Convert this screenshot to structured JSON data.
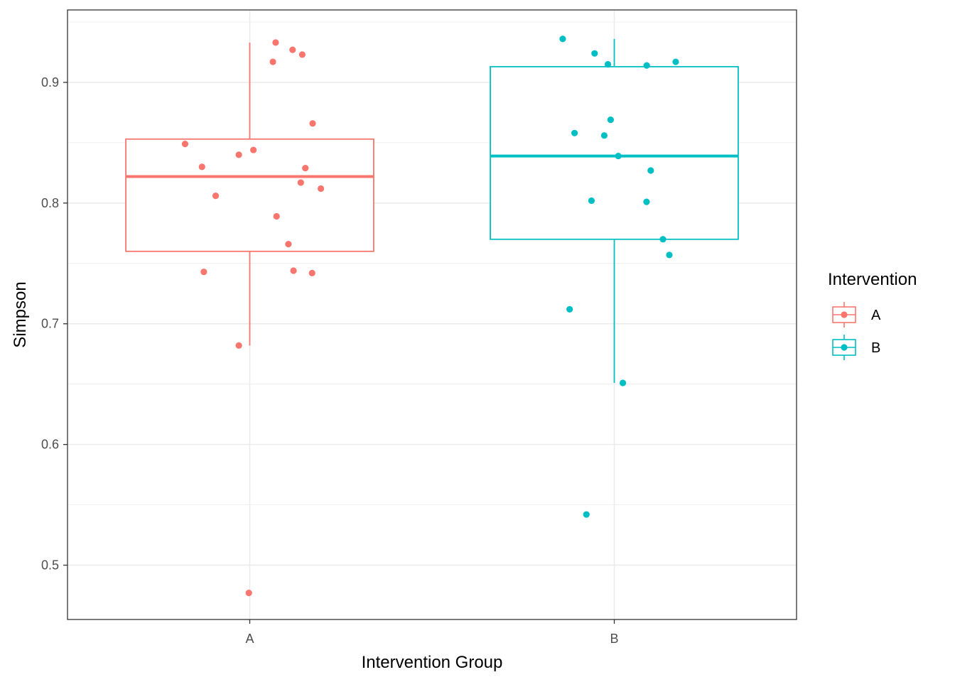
{
  "chart_data": {
    "type": "boxplot",
    "title": "",
    "xlabel": "Intervention Group",
    "ylabel": "Simpson",
    "categories": [
      "A",
      "B"
    ],
    "ylim": [
      0.455,
      0.96
    ],
    "yticks": [
      0.5,
      0.6,
      0.7,
      0.8,
      0.9
    ],
    "ytick_labels": [
      "0.5",
      "0.6",
      "0.7",
      "0.8",
      "0.9"
    ],
    "ygrid_minor": [
      0.55,
      0.65,
      0.75,
      0.85,
      0.95
    ],
    "grid": true,
    "legend": {
      "title": "Intervention",
      "placement": "right",
      "entries": [
        "A",
        "B"
      ]
    },
    "series": [
      {
        "name": "A",
        "color": "#F8766D",
        "box": {
          "lower_whisker": 0.682,
          "q1": 0.76,
          "median": 0.822,
          "q3": 0.853,
          "upper_whisker": 0.933
        },
        "points": [
          {
            "jitter": -0.355,
            "value": 0.849
          },
          {
            "jitter": -0.262,
            "value": 0.83
          },
          {
            "jitter": -0.187,
            "value": 0.806
          },
          {
            "jitter": -0.252,
            "value": 0.743
          },
          {
            "jitter": -0.06,
            "value": 0.84
          },
          {
            "jitter": 0.02,
            "value": 0.844
          },
          {
            "jitter": -0.06,
            "value": 0.682
          },
          {
            "jitter": -0.005,
            "value": 0.477
          },
          {
            "jitter": 0.127,
            "value": 0.917
          },
          {
            "jitter": 0.142,
            "value": 0.933
          },
          {
            "jitter": 0.235,
            "value": 0.927
          },
          {
            "jitter": 0.288,
            "value": 0.923
          },
          {
            "jitter": 0.345,
            "value": 0.866
          },
          {
            "jitter": 0.305,
            "value": 0.829
          },
          {
            "jitter": 0.28,
            "value": 0.817
          },
          {
            "jitter": 0.39,
            "value": 0.812
          },
          {
            "jitter": 0.147,
            "value": 0.789
          },
          {
            "jitter": 0.212,
            "value": 0.766
          },
          {
            "jitter": 0.24,
            "value": 0.744
          },
          {
            "jitter": 0.342,
            "value": 0.742
          }
        ]
      },
      {
        "name": "B",
        "color": "#00BFC4",
        "box": {
          "lower_whisker": 0.651,
          "q1": 0.77,
          "median": 0.839,
          "q3": 0.913,
          "upper_whisker": 0.936
        },
        "points": [
          {
            "jitter": -0.283,
            "value": 0.936
          },
          {
            "jitter": -0.108,
            "value": 0.924
          },
          {
            "jitter": -0.035,
            "value": 0.915
          },
          {
            "jitter": 0.178,
            "value": 0.914
          },
          {
            "jitter": 0.337,
            "value": 0.917
          },
          {
            "jitter": -0.218,
            "value": 0.858
          },
          {
            "jitter": -0.02,
            "value": 0.869
          },
          {
            "jitter": -0.055,
            "value": 0.856
          },
          {
            "jitter": 0.022,
            "value": 0.839
          },
          {
            "jitter": 0.2,
            "value": 0.827
          },
          {
            "jitter": -0.125,
            "value": 0.802
          },
          {
            "jitter": 0.177,
            "value": 0.801
          },
          {
            "jitter": 0.267,
            "value": 0.77
          },
          {
            "jitter": 0.302,
            "value": 0.757
          },
          {
            "jitter": -0.245,
            "value": 0.712
          },
          {
            "jitter": 0.047,
            "value": 0.651
          },
          {
            "jitter": -0.153,
            "value": 0.542
          }
        ]
      }
    ]
  }
}
